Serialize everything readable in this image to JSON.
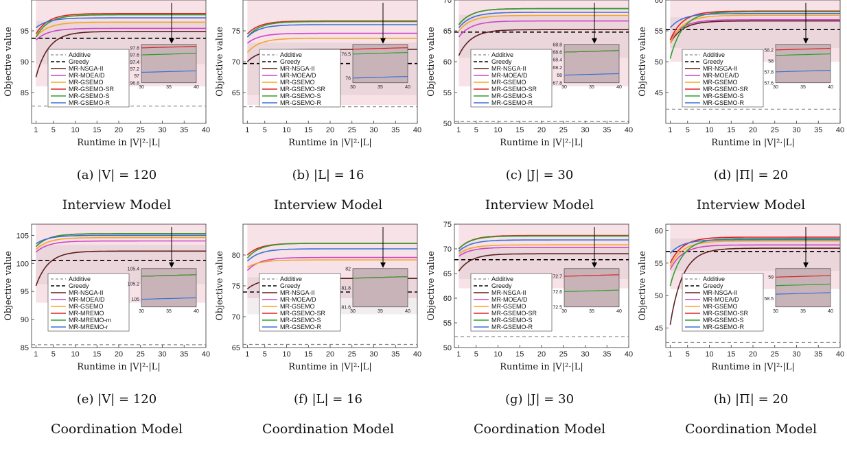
{
  "xlabel": "Runtime in |V|²·|L|",
  "ylabel": "Objective value",
  "chart_data": [
    {
      "type": "line",
      "id": "a",
      "caption": "(a) |V| = 120",
      "model": "Interview Model",
      "ylim": [
        80,
        100
      ],
      "yticks": [
        85,
        90,
        95
      ],
      "xticks": [
        1,
        5,
        10,
        15,
        20,
        25,
        30,
        35,
        40
      ],
      "xlim": [
        0,
        40
      ],
      "additive": 82.8,
      "greedy": 93.8,
      "band_low": 86,
      "band_high": 100,
      "series": [
        {
          "name": "MR-NSGA-II",
          "color": "#5c1f1f",
          "start": 87.5,
          "final": 94.9
        },
        {
          "name": "MR-MOEA/D",
          "color": "#cc44cc",
          "start": 93.5,
          "final": 95.4
        },
        {
          "name": "MR-GSEMO",
          "color": "#f5a623",
          "start": 94.0,
          "final": 96.4
        },
        {
          "name": "MR-GSEMO-SR",
          "color": "#e02020",
          "start": 94.5,
          "final": 97.8
        },
        {
          "name": "MR-GSEMO-S",
          "color": "#2e9e2e",
          "start": 94.0,
          "final": 97.6
        },
        {
          "name": "MR-GSEMO-R",
          "color": "#3a6fd8",
          "start": 95.5,
          "final": 97.1
        }
      ],
      "inset": {
        "yticks": [
          96.8,
          97.0,
          97.2,
          97.4,
          97.6,
          97.8
        ],
        "ylim": [
          96.8,
          97.9
        ],
        "xticks": [
          30,
          35,
          40
        ]
      }
    },
    {
      "type": "line",
      "id": "b",
      "caption": "(b) |L| = 16",
      "model": "Interview Model",
      "ylim": [
        60,
        80
      ],
      "yticks": [
        65,
        70,
        75
      ],
      "xticks": [
        1,
        5,
        10,
        15,
        20,
        25,
        30,
        35,
        40
      ],
      "xlim": [
        0,
        40
      ],
      "additive": 62.7,
      "greedy": 69.7,
      "band_low": 63,
      "band_high": 80,
      "series": [
        {
          "name": "MR-NSGA-II",
          "color": "#5c1f1f",
          "start": 70.0,
          "final": 72.0
        },
        {
          "name": "MR-MOEA/D",
          "color": "#cc44cc",
          "start": 73.0,
          "final": 74.6
        },
        {
          "name": "MR-GSEMO",
          "color": "#f5a623",
          "start": 71.5,
          "final": 73.8
        },
        {
          "name": "MR-GSEMO-SR",
          "color": "#e02020",
          "start": 74.5,
          "final": 76.6
        },
        {
          "name": "MR-GSEMO-S",
          "color": "#2e9e2e",
          "start": 74.0,
          "final": 76.5
        },
        {
          "name": "MR-GSEMO-R",
          "color": "#3a6fd8",
          "start": 74.0,
          "final": 76.0
        }
      ],
      "inset": {
        "yticks": [
          76.0,
          76.5
        ],
        "ylim": [
          75.9,
          76.7
        ],
        "xticks": [
          30,
          35,
          40
        ]
      }
    },
    {
      "type": "line",
      "id": "c",
      "caption": "(c) |J| = 30",
      "model": "Interview Model",
      "ylim": [
        50,
        70
      ],
      "yticks": [
        50,
        55,
        60,
        65,
        70
      ],
      "xticks": [
        1,
        5,
        10,
        15,
        20,
        25,
        30,
        35,
        40
      ],
      "xlim": [
        0,
        40
      ],
      "additive": 50.3,
      "greedy": 64.8,
      "band_low": 56,
      "band_high": 70,
      "series": [
        {
          "name": "MR-NSGA-II",
          "color": "#5c1f1f",
          "start": 61.0,
          "final": 65.2
        },
        {
          "name": "MR-MOEA/D",
          "color": "#cc44cc",
          "start": 64.0,
          "final": 66.6
        },
        {
          "name": "MR-GSEMO",
          "color": "#f5a623",
          "start": 65.0,
          "final": 67.5
        },
        {
          "name": "MR-GSEMO-SR",
          "color": "#e02020",
          "start": 66.0,
          "final": 68.6
        },
        {
          "name": "MR-GSEMO-S",
          "color": "#2e9e2e",
          "start": 66.0,
          "final": 68.6
        },
        {
          "name": "MR-GSEMO-R",
          "color": "#3a6fd8",
          "start": 65.5,
          "final": 68.0
        }
      ],
      "inset": {
        "yticks": [
          67.8,
          68.0,
          68.2,
          68.4,
          68.6,
          68.8
        ],
        "ylim": [
          67.8,
          68.8
        ],
        "xticks": [
          30,
          35,
          40
        ]
      }
    },
    {
      "type": "line",
      "id": "d",
      "caption": "(d) |Π| = 20",
      "model": "Interview Model",
      "ylim": [
        40,
        60
      ],
      "yticks": [
        45,
        50,
        55,
        60
      ],
      "xticks": [
        1,
        5,
        10,
        15,
        20,
        25,
        30,
        35,
        40
      ],
      "xlim": [
        0,
        40
      ],
      "additive": 42.3,
      "greedy": 55.2,
      "band_low": 50,
      "band_high": 60,
      "series": [
        {
          "name": "MR-NSGA-II",
          "color": "#5c1f1f",
          "start": 53.0,
          "final": 56.6
        },
        {
          "name": "MR-MOEA/D",
          "color": "#cc44cc",
          "start": 53.5,
          "final": 56.8
        },
        {
          "name": "MR-GSEMO",
          "color": "#f5a623",
          "start": 53.0,
          "final": 57.5
        },
        {
          "name": "MR-GSEMO-SR",
          "color": "#e02020",
          "start": 53.5,
          "final": 58.2
        },
        {
          "name": "MR-GSEMO-S",
          "color": "#2e9e2e",
          "start": 50.5,
          "final": 58.1
        },
        {
          "name": "MR-GSEMO-R",
          "color": "#3a6fd8",
          "start": 55.5,
          "final": 57.8
        }
      ],
      "inset": {
        "yticks": [
          57.6,
          57.8,
          58.0,
          58.2
        ],
        "ylim": [
          57.6,
          58.3
        ],
        "xticks": [
          30,
          35,
          40
        ]
      }
    },
    {
      "type": "line",
      "id": "e",
      "caption": "(e) |V| = 120",
      "model": "Coordination Model",
      "ylim": [
        85,
        107
      ],
      "yticks": [
        85,
        90,
        95,
        100,
        105
      ],
      "xticks": [
        1,
        5,
        10,
        15,
        20,
        25,
        30,
        35,
        40
      ],
      "xlim": [
        0,
        40
      ],
      "additive": 85.5,
      "greedy": 100.5,
      "band_low": 93,
      "band_high": 107,
      "series": [
        {
          "name": "MR-NSGA-II",
          "color": "#5c1f1f",
          "start": 96.0,
          "final": 102.2
        },
        {
          "name": "MR-MOEA/D",
          "color": "#cc44cc",
          "start": 102.0,
          "final": 104.0
        },
        {
          "name": "MR-GSEMO",
          "color": "#f5a623",
          "start": 102.5,
          "final": 104.6
        },
        {
          "name": "MR-MREMO",
          "color": "#e02020",
          "start": 103.0,
          "final": 105.3
        },
        {
          "name": "MR-MREMO-m",
          "color": "#2e9e2e",
          "start": 103.0,
          "final": 105.3
        },
        {
          "name": "MR-MREMO-r",
          "color": "#3a6fd8",
          "start": 103.5,
          "final": 105.0
        }
      ],
      "inset": {
        "yticks": [
          105.0,
          105.2,
          105.4
        ],
        "ylim": [
          104.9,
          105.4
        ],
        "xticks": [
          30,
          35,
          40
        ]
      }
    },
    {
      "type": "line",
      "id": "f",
      "caption": "(f) |L| = 16",
      "model": "Coordination Model",
      "ylim": [
        65,
        85
      ],
      "yticks": [
        65,
        70,
        75,
        80
      ],
      "xticks": [
        1,
        5,
        10,
        15,
        20,
        25,
        30,
        35,
        40
      ],
      "xlim": [
        0,
        40
      ],
      "additive": 65.5,
      "greedy": 74.0,
      "band_low": 73,
      "band_high": 85,
      "series": [
        {
          "name": "MR-NSGA-II",
          "color": "#5c1f1f",
          "start": 74.5,
          "final": 76.2
        },
        {
          "name": "MR-MOEA/D",
          "color": "#cc44cc",
          "start": 77.5,
          "final": 79.6
        },
        {
          "name": "MR-GSEMO",
          "color": "#f5a623",
          "start": 78.0,
          "final": 79.2
        },
        {
          "name": "MR-GSEMO-SR",
          "color": "#e02020",
          "start": 80.0,
          "final": 81.9
        },
        {
          "name": "MR-GSEMO-S",
          "color": "#2e9e2e",
          "start": 79.5,
          "final": 81.9
        },
        {
          "name": "MR-GSEMO-R",
          "color": "#3a6fd8",
          "start": 79.0,
          "final": 81.0
        }
      ],
      "inset": {
        "yticks": [
          81.6,
          81.8,
          82.0
        ],
        "ylim": [
          81.6,
          82.0
        ],
        "xticks": [
          30,
          35,
          40
        ]
      }
    },
    {
      "type": "line",
      "id": "g",
      "caption": "(g) |J| = 30",
      "model": "Coordination Model",
      "ylim": [
        50,
        75
      ],
      "yticks": [
        50,
        55,
        60,
        65,
        70,
        75
      ],
      "xticks": [
        1,
        5,
        10,
        15,
        20,
        25,
        30,
        35,
        40
      ],
      "xlim": [
        0,
        40
      ],
      "additive": 52.2,
      "greedy": 67.8,
      "band_low": 62,
      "band_high": 75,
      "series": [
        {
          "name": "MR-NSGA-II",
          "color": "#5c1f1f",
          "start": 65.5,
          "final": 69.0
        },
        {
          "name": "MR-MOEA/D",
          "color": "#cc44cc",
          "start": 68.5,
          "final": 70.3
        },
        {
          "name": "MR-GSEMO",
          "color": "#f5a623",
          "start": 69.0,
          "final": 70.8
        },
        {
          "name": "MR-GSEMO-SR",
          "color": "#e02020",
          "start": 70.0,
          "final": 72.7
        },
        {
          "name": "MR-GSEMO-S",
          "color": "#2e9e2e",
          "start": 70.0,
          "final": 72.6
        },
        {
          "name": "MR-GSEMO-R",
          "color": "#3a6fd8",
          "start": 69.5,
          "final": 71.8
        }
      ],
      "inset": {
        "yticks": [
          72.5,
          72.6,
          72.7
        ],
        "ylim": [
          72.5,
          72.75
        ],
        "xticks": [
          30,
          35,
          40
        ]
      }
    },
    {
      "type": "line",
      "id": "h",
      "caption": "(h) |Π| = 20",
      "model": "Coordination Model",
      "ylim": [
        42,
        61
      ],
      "yticks": [
        45,
        50,
        55,
        60
      ],
      "xticks": [
        1,
        5,
        10,
        15,
        20,
        25,
        30,
        35,
        40
      ],
      "xlim": [
        0,
        40
      ],
      "additive": 42.8,
      "greedy": 56.8,
      "band_low": 51,
      "band_high": 61,
      "series": [
        {
          "name": "MR-NSGA-II",
          "color": "#5c1f1f",
          "start": 45.5,
          "final": 57.3
        },
        {
          "name": "MR-MOEA/D",
          "color": "#cc44cc",
          "start": 54.0,
          "final": 57.8
        },
        {
          "name": "MR-GSEMO",
          "color": "#f5a623",
          "start": 54.5,
          "final": 58.4
        },
        {
          "name": "MR-GSEMO-SR",
          "color": "#e02020",
          "start": 55.0,
          "final": 59.0
        },
        {
          "name": "MR-GSEMO-S",
          "color": "#2e9e2e",
          "start": 51.5,
          "final": 58.8
        },
        {
          "name": "MR-GSEMO-R",
          "color": "#3a6fd8",
          "start": 56.5,
          "final": 58.6
        }
      ],
      "inset": {
        "yticks": [
          58.5,
          59.0
        ],
        "ylim": [
          58.3,
          59.2
        ],
        "xticks": [
          30,
          35,
          40
        ]
      }
    }
  ],
  "legend_static": {
    "additive": "Additive",
    "greedy": "Greedy"
  },
  "colors": {
    "band_red": "#d06080",
    "band_neutral": "#b8a0a8",
    "inset_bg": "#c8b4b8",
    "additive": "#888888",
    "greedy": "#000000"
  }
}
